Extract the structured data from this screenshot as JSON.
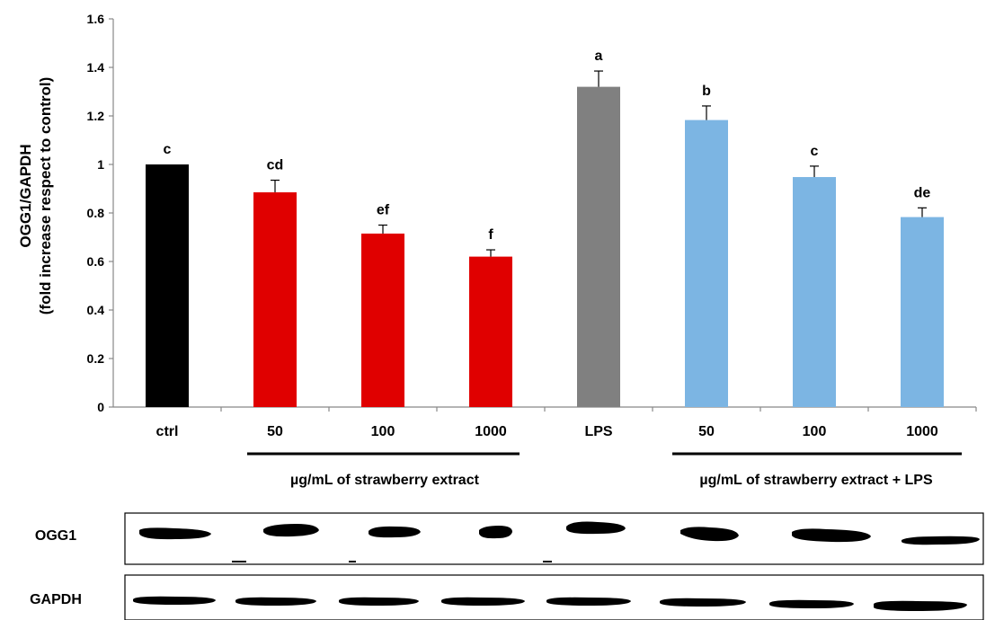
{
  "chart_data": {
    "type": "bar",
    "title": "",
    "ylabel_line1": "OGG1/GAPDH",
    "ylabel_line2": "(fold increase respect to control)",
    "xlabel": "",
    "ylim": [
      0,
      1.6
    ],
    "yticks": [
      "0",
      "0.2",
      "0.4",
      "0.6",
      "0.8",
      "1",
      "1.2",
      "1.4",
      "1.6"
    ],
    "categories": [
      "ctrl",
      "50",
      "100",
      "1000",
      "LPS",
      "50",
      "100",
      "1000"
    ],
    "values": [
      1.0,
      0.885,
      0.715,
      0.62,
      1.32,
      1.183,
      0.948,
      0.783
    ],
    "errors": [
      0.0,
      0.05,
      0.035,
      0.028,
      0.065,
      0.058,
      0.045,
      0.038
    ],
    "significance": [
      "c",
      "cd",
      "ef",
      "f",
      "a",
      "b",
      "c",
      "de"
    ],
    "bar_colors": [
      "#000000",
      "#e00000",
      "#e00000",
      "#e00000",
      "#808080",
      "#7cb5e3",
      "#7cb5e3",
      "#7cb5e3"
    ],
    "groups": [
      {
        "label": "µg/mL of strawberry extract",
        "from": 1,
        "to": 3
      },
      {
        "label": "µg/mL of strawberry extract + LPS",
        "from": 5,
        "to": 7
      }
    ],
    "grid": false,
    "legend": "none"
  },
  "blot": {
    "rows": [
      "OGG1",
      "GAPDH"
    ]
  }
}
